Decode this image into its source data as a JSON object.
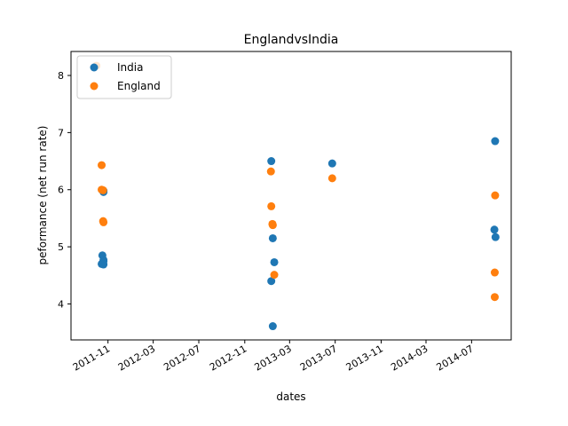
{
  "chart_data": {
    "type": "scatter",
    "title": "EnglandvsIndia",
    "xlabel": "dates",
    "ylabel": "peformance (net run rate)",
    "x_ticks": [
      "2011-11",
      "2012-03",
      "2012-07",
      "2012-11",
      "2013-03",
      "2013-07",
      "2013-11",
      "2014-03",
      "2014-07"
    ],
    "y_ticks": [
      4,
      5,
      6,
      7,
      8
    ],
    "xlim": [
      "2011-07-25",
      "2014-10-15"
    ],
    "ylim": [
      3.37,
      8.42
    ],
    "grid": false,
    "legend_position": "top-left",
    "colors": {
      "India": "#1f77b4",
      "England": "#ff7f0e"
    },
    "series": [
      {
        "name": "India",
        "points": [
          {
            "x": "2011-10-17",
            "y": 4.85
          },
          {
            "x": "2011-10-15",
            "y": 4.7
          },
          {
            "x": "2011-10-20",
            "y": 4.75
          },
          {
            "x": "2011-10-20",
            "y": 4.77
          },
          {
            "x": "2011-10-20",
            "y": 4.69
          },
          {
            "x": "2011-10-20",
            "y": 5.98
          },
          {
            "x": "2011-10-20",
            "y": 5.96
          },
          {
            "x": "2013-01-11",
            "y": 6.5
          },
          {
            "x": "2013-01-11",
            "y": 4.4
          },
          {
            "x": "2013-01-19",
            "y": 4.73
          },
          {
            "x": "2013-01-15",
            "y": 5.15
          },
          {
            "x": "2013-01-15",
            "y": 3.61
          },
          {
            "x": "2013-06-23",
            "y": 6.46
          },
          {
            "x": "2014-09-02",
            "y": 6.85
          },
          {
            "x": "2014-08-31",
            "y": 5.3
          },
          {
            "x": "2014-09-03",
            "y": 5.17
          }
        ]
      },
      {
        "name": "England",
        "points": [
          {
            "x": "2011-10-01",
            "y": 8.17
          },
          {
            "x": "2011-10-15",
            "y": 6.43
          },
          {
            "x": "2011-10-15",
            "y": 6.0
          },
          {
            "x": "2011-10-19",
            "y": 5.99
          },
          {
            "x": "2011-10-19",
            "y": 5.45
          },
          {
            "x": "2011-10-20",
            "y": 5.43
          },
          {
            "x": "2013-01-10",
            "y": 6.32
          },
          {
            "x": "2013-01-11",
            "y": 5.71
          },
          {
            "x": "2013-01-14",
            "y": 5.4
          },
          {
            "x": "2013-01-15",
            "y": 5.38
          },
          {
            "x": "2013-01-19",
            "y": 4.51
          },
          {
            "x": "2013-06-23",
            "y": 6.2
          },
          {
            "x": "2014-09-02",
            "y": 5.9
          },
          {
            "x": "2014-09-01",
            "y": 4.55
          },
          {
            "x": "2014-09-01",
            "y": 4.12
          }
        ]
      }
    ]
  }
}
